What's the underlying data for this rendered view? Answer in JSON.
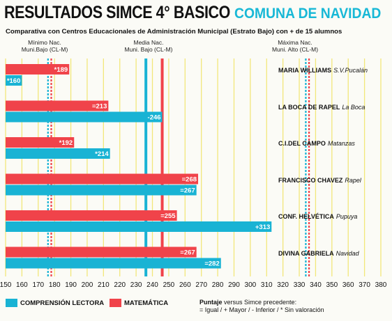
{
  "header": {
    "title": "RESULTADOS SIMCE 4° BASICO",
    "commune": "COMUNA DE NAVIDAD",
    "subtitle": "Comparativa con Centros Educacionales de Administración Municipal (Estrato Bajo) con + de 15 alumnos"
  },
  "reference_labels": {
    "min_line1": "Mínimo Nac.",
    "min_line2": "Muni.Bajo (CL-M)",
    "mean_line1": "Media Nac.",
    "mean_line2": "Muni. Bajo (CL-M)",
    "max_line1": "Máxima Nac.",
    "max_line2": "Muni. Alto (CL-M)"
  },
  "legend": {
    "lectura": "COMPRENSIÓN LECTORA",
    "matematica": "MATEMÁTICA",
    "note_bold": "Puntaje",
    "note_rest": " versus Simce precedente:",
    "note_line2": "= Igual / + Mayor / - Inferior / * Sin valoración"
  },
  "colors": {
    "lectura": "#19b3d4",
    "matematica": "#f0434a",
    "gridline": "#f2e77a",
    "title_accent": "#18b8d6"
  },
  "chart_data": {
    "type": "bar",
    "orientation": "horizontal",
    "xlim": [
      150,
      380
    ],
    "x_ticks": [
      150,
      160,
      170,
      180,
      190,
      200,
      210,
      220,
      230,
      240,
      250,
      260,
      270,
      280,
      290,
      300,
      310,
      320,
      330,
      340,
      350,
      360,
      370,
      380
    ],
    "grid": true,
    "legend_position": "bottom-left",
    "categories": [
      {
        "school": "MARIA WILLIAMS",
        "location": "S.V.Pucalán"
      },
      {
        "school": "LA BOCA DE RAPEL",
        "location": "La Boca"
      },
      {
        "school": "C.I.DEL CAMPO",
        "location": "Matanzas"
      },
      {
        "school": "FRANCISCO CHAVEZ",
        "location": "Rapel"
      },
      {
        "school": "CONF. HELVÉTICA",
        "location": "Pupuya"
      },
      {
        "school": "DIVINA GABRIELA",
        "location": "Navidad"
      }
    ],
    "series": [
      {
        "name": "MATEMÁTICA",
        "values": [
          189,
          213,
          192,
          268,
          255,
          267
        ],
        "labels": [
          "*189",
          "=213",
          "*192",
          "=268",
          "=255",
          "=267"
        ]
      },
      {
        "name": "COMPRENSIÓN LECTORA",
        "values": [
          160,
          246,
          214,
          267,
          313,
          282
        ],
        "labels": [
          "*160",
          "-246",
          "*214",
          "=267",
          "+313",
          "=282"
        ]
      }
    ],
    "reference_lines": {
      "minimo_lectura": 176,
      "minimo_matematica": 178,
      "media_lectura": 236,
      "media_matematica": 246,
      "maxima_lectura": 334,
      "maxima_matematica": 336
    }
  }
}
